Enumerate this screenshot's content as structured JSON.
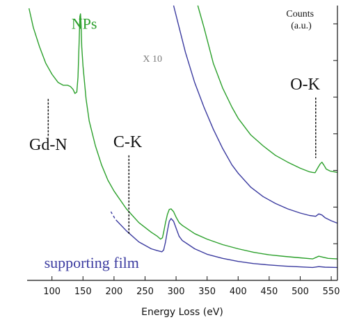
{
  "chart_data": {
    "type": "line",
    "title": "",
    "xlabel": "Energy Loss (eV)",
    "ylabel": "Counts\n(a.u.)",
    "xlim": [
      60,
      560
    ],
    "ylim": [
      0,
      100
    ],
    "y_scale": "arbitrary",
    "grid": false,
    "x_ticks": [
      100,
      150,
      200,
      250,
      300,
      350,
      400,
      450,
      500,
      550
    ],
    "y_tick_count": 7,
    "y_ticks_visible_labels": false,
    "series": [
      {
        "name": "NPs",
        "color": "#2ba02b",
        "points": [
          [
            63,
            99
          ],
          [
            70,
            92
          ],
          [
            80,
            85
          ],
          [
            90,
            79
          ],
          [
            100,
            75
          ],
          [
            110,
            72
          ],
          [
            118,
            71
          ],
          [
            125,
            71
          ],
          [
            130,
            70.5
          ],
          [
            134,
            69.5
          ],
          [
            137,
            68
          ],
          [
            140,
            68.5
          ],
          [
            142,
            74
          ],
          [
            144,
            88
          ],
          [
            145,
            96
          ],
          [
            146,
            97
          ],
          [
            147,
            93
          ],
          [
            148,
            85
          ],
          [
            150,
            78
          ],
          [
            155,
            66
          ],
          [
            160,
            58
          ],
          [
            170,
            49
          ],
          [
            180,
            42
          ],
          [
            190,
            36.5
          ],
          [
            200,
            32.5
          ],
          [
            220,
            26
          ],
          [
            240,
            21
          ],
          [
            260,
            17.5
          ],
          [
            270,
            16
          ],
          [
            275,
            15
          ],
          [
            278,
            15.5
          ],
          [
            280,
            17.5
          ],
          [
            283,
            21
          ],
          [
            286,
            24
          ],
          [
            289,
            25.8
          ],
          [
            292,
            26
          ],
          [
            296,
            25
          ],
          [
            300,
            23
          ],
          [
            305,
            21
          ],
          [
            310,
            20
          ],
          [
            320,
            18.5
          ],
          [
            330,
            17
          ],
          [
            350,
            15
          ],
          [
            375,
            13
          ],
          [
            400,
            11.5
          ],
          [
            425,
            10.2
          ],
          [
            450,
            9.3
          ],
          [
            475,
            8.7
          ],
          [
            500,
            8.2
          ],
          [
            520,
            7.8
          ],
          [
            530,
            8.8
          ],
          [
            537,
            8.4
          ],
          [
            545,
            8.0
          ],
          [
            560,
            7.8
          ]
        ]
      },
      {
        "name": "supporting film",
        "color": "#3a3a9f",
        "segments": [
          [
            [
              195,
              25
            ],
            [
              197,
              24.2
            ]
          ],
          [
            [
              199,
              23.5
            ],
            [
              201,
              22.6
            ]
          ],
          [
            [
              203,
              22.0
            ],
            [
              220,
              18
            ],
            [
              240,
              14
            ],
            [
              260,
              11.5
            ],
            [
              270,
              10.8
            ],
            [
              277,
              10.4
            ],
            [
              280,
              11
            ],
            [
              283,
              14
            ],
            [
              286,
              18
            ],
            [
              289,
              21.5
            ],
            [
              292,
              22.5
            ],
            [
              296,
              21.5
            ],
            [
              300,
              19
            ],
            [
              305,
              16
            ],
            [
              310,
              14.5
            ],
            [
              320,
              13
            ],
            [
              330,
              11.5
            ],
            [
              350,
              9.5
            ],
            [
              375,
              8
            ],
            [
              400,
              6.9
            ],
            [
              425,
              6.1
            ],
            [
              450,
              5.6
            ],
            [
              475,
              5.2
            ],
            [
              500,
              4.9
            ],
            [
              520,
              4.7
            ],
            [
              530,
              5.0
            ],
            [
              540,
              4.8
            ],
            [
              560,
              4.7
            ]
          ]
        ]
      },
      {
        "name": "NPs X 10",
        "color": "#2ba02b",
        "points": [
          [
            335,
            100
          ],
          [
            345,
            92
          ],
          [
            360,
            79
          ],
          [
            375,
            70
          ],
          [
            390,
            63
          ],
          [
            400,
            59
          ],
          [
            420,
            53
          ],
          [
            440,
            49
          ],
          [
            460,
            45.5
          ],
          [
            480,
            43
          ],
          [
            500,
            40.8
          ],
          [
            515,
            39.5
          ],
          [
            520,
            39.3
          ],
          [
            524,
            39.2
          ],
          [
            528,
            40.8
          ],
          [
            532,
            42.3
          ],
          [
            535,
            43
          ],
          [
            538,
            42
          ],
          [
            542,
            40.5
          ],
          [
            548,
            39.8
          ],
          [
            560,
            39.3
          ]
        ]
      },
      {
        "name": "supporting film X 10",
        "color": "#3a3a9f",
        "points": [
          [
            296,
            100
          ],
          [
            305,
            92
          ],
          [
            315,
            83
          ],
          [
            330,
            72
          ],
          [
            345,
            63
          ],
          [
            360,
            55
          ],
          [
            375,
            48
          ],
          [
            390,
            42
          ],
          [
            400,
            39
          ],
          [
            420,
            34
          ],
          [
            440,
            30.5
          ],
          [
            460,
            28
          ],
          [
            480,
            26
          ],
          [
            500,
            24.5
          ],
          [
            515,
            23.6
          ],
          [
            525,
            23.3
          ],
          [
            530,
            24.2
          ],
          [
            535,
            23.8
          ],
          [
            540,
            22.8
          ],
          [
            550,
            21.7
          ],
          [
            560,
            20.8
          ]
        ]
      }
    ],
    "annotations": [
      {
        "text": "NPs",
        "x": 152,
        "y": 91.5,
        "color": "#2ba02b",
        "size": 22
      },
      {
        "text": "X 10",
        "x": 262,
        "y": 79.5,
        "color": "#7a7a7a",
        "size": 14
      },
      {
        "text": "Gd-N",
        "x": 94,
        "y": 47.5,
        "color": "#111111",
        "size": 24
      },
      {
        "text": "C-K",
        "x": 222,
        "y": 48.5,
        "color": "#111111",
        "size": 24
      },
      {
        "text": "O-K",
        "x": 508,
        "y": 69.5,
        "color": "#111111",
        "size": 24
      },
      {
        "text": "supporting film",
        "x": 164,
        "y": 4.5,
        "color": "#3a3a9f",
        "size": 22
      }
    ],
    "markers": [
      {
        "x": 94,
        "y_from": 66,
        "y_to": 52
      },
      {
        "x": 224,
        "y_from": 45.5,
        "y_to": 16.5
      },
      {
        "x": 525,
        "y_from": 66.5,
        "y_to": 44.5
      }
    ]
  }
}
